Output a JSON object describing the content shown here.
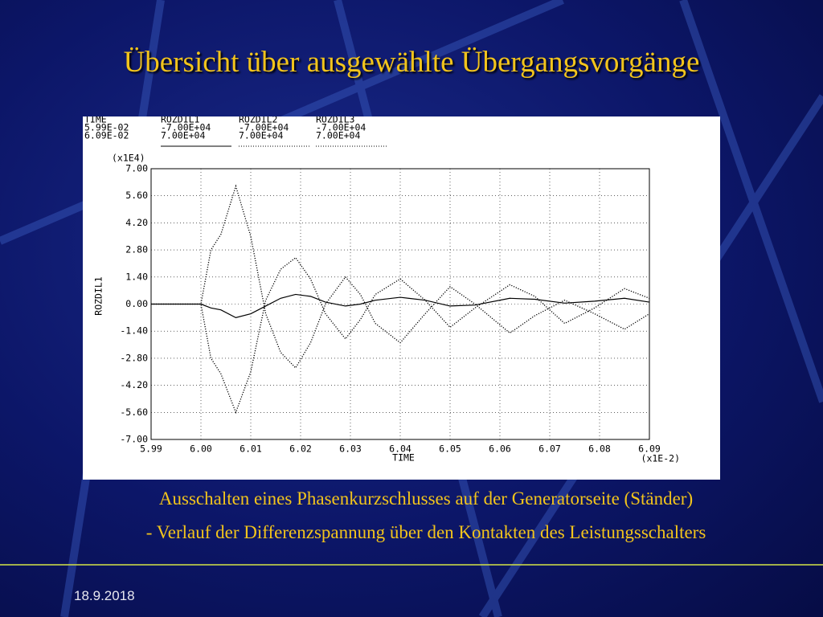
{
  "slide": {
    "title": "Übersicht über ausgewählte Übergangsvorgänge",
    "caption_1": "Ausschalten eines Phasenkurzschlusses auf der Generatorseite (Ständer)",
    "caption_2": "- Verlauf der Differenzspannung über den Kontakten des Leistungsschalters",
    "date": "18.9.2018"
  },
  "chart_data": {
    "type": "line",
    "info_table": {
      "columns": [
        "TIME",
        "ROZDIL1",
        "ROZDIL2",
        "ROZDIL3"
      ],
      "rows": [
        [
          "5.99E-02",
          "-7.00E+04",
          "-7.00E+04",
          "-7.00E+04"
        ],
        [
          "6.09E-02",
          "7.00E+04",
          "7.00E+04",
          "7.00E+04"
        ]
      ]
    },
    "y_label": "ROZDIL1",
    "y_unit": "(x1E4)",
    "x_label": "TIME",
    "x_unit": "(x1E-2)",
    "x": [
      5.99,
      6.0,
      6.002,
      6.004,
      6.007,
      6.01,
      6.013,
      6.016,
      6.019,
      6.022,
      6.025,
      6.029,
      6.032,
      6.035,
      6.04,
      6.045,
      6.05,
      6.055,
      6.062,
      6.067,
      6.073,
      6.079,
      6.085,
      6.09
    ],
    "series": [
      {
        "name": "ROZDIL1",
        "color": "#000000",
        "style": "solid",
        "values": [
          0,
          0,
          -0.2,
          -0.3,
          -0.7,
          -0.5,
          -0.1,
          0.3,
          0.5,
          0.4,
          0.1,
          -0.1,
          0,
          0.2,
          0.35,
          0.2,
          -0.1,
          -0.05,
          0.3,
          0.25,
          0.05,
          0.15,
          0.3,
          0.1
        ]
      },
      {
        "name": "ROZDIL2",
        "color": "#000000",
        "style": "dotted",
        "values": [
          0,
          0,
          2.8,
          3.6,
          6.1,
          3.5,
          -0.5,
          -2.5,
          -3.3,
          -2.0,
          0,
          1.4,
          0.5,
          -1.0,
          -2.0,
          -0.5,
          0.9,
          0,
          -1.5,
          -0.6,
          0.2,
          -0.5,
          -1.3,
          -0.5
        ]
      },
      {
        "name": "ROZDIL3",
        "color": "#000000",
        "style": "dotted",
        "values": [
          0,
          0,
          -2.8,
          -3.6,
          -5.6,
          -3.5,
          0.2,
          1.8,
          2.4,
          1.3,
          -0.5,
          -1.8,
          -0.8,
          0.5,
          1.3,
          0.2,
          -1.2,
          -0.2,
          1.0,
          0.4,
          -1.0,
          -0.2,
          0.8,
          0.3
        ]
      }
    ],
    "xlim": [
      5.99,
      6.09
    ],
    "xticks": [
      5.99,
      {
        "value": 6.0,
        "label": "6.00"
      },
      6.01,
      6.02,
      6.03,
      6.04,
      6.05,
      6.06,
      6.07,
      6.08,
      6.09
    ],
    "ylim": [
      -7,
      7
    ],
    "yticks": [
      {
        "value": 7,
        "label": "7.00"
      },
      {
        "value": 5.6,
        "label": "5.60"
      },
      {
        "value": 4.2,
        "label": "4.20"
      },
      {
        "value": 2.8,
        "label": "2.80"
      },
      {
        "value": 1.4,
        "label": "1.40"
      },
      {
        "value": 0,
        "label": "0.00"
      },
      {
        "value": -1.4,
        "label": "-1.40"
      },
      {
        "value": -2.8,
        "label": "-2.80"
      },
      {
        "value": -4.2,
        "label": "-4.20"
      },
      {
        "value": -5.6,
        "label": "-5.60"
      },
      {
        "value": -7,
        "label": "-7.00"
      }
    ],
    "grid": true
  }
}
